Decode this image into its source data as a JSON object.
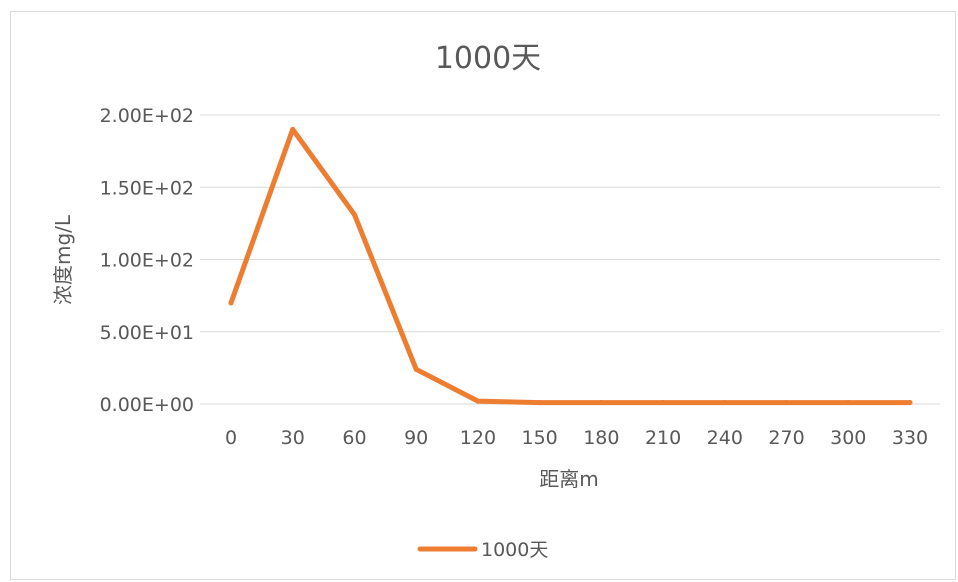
{
  "chart_data": {
    "type": "line",
    "title": "1000天",
    "xlabel": "距离m",
    "ylabel": "浓度mg/L",
    "categories": [
      "0",
      "30",
      "60",
      "90",
      "120",
      "150",
      "180",
      "210",
      "240",
      "270",
      "300",
      "330"
    ],
    "series": [
      {
        "name": "1000天",
        "color": "#ed7d31",
        "values": [
          70,
          190,
          131,
          24,
          2,
          1,
          1,
          1,
          1,
          1,
          1,
          1
        ]
      }
    ],
    "yticks": [
      "0.00E+00",
      "5.00E+01",
      "1.00E+02",
      "1.50E+02",
      "2.00E+02"
    ],
    "ylim": [
      0,
      200
    ],
    "grid": "horizontal",
    "legend_position": "bottom"
  }
}
